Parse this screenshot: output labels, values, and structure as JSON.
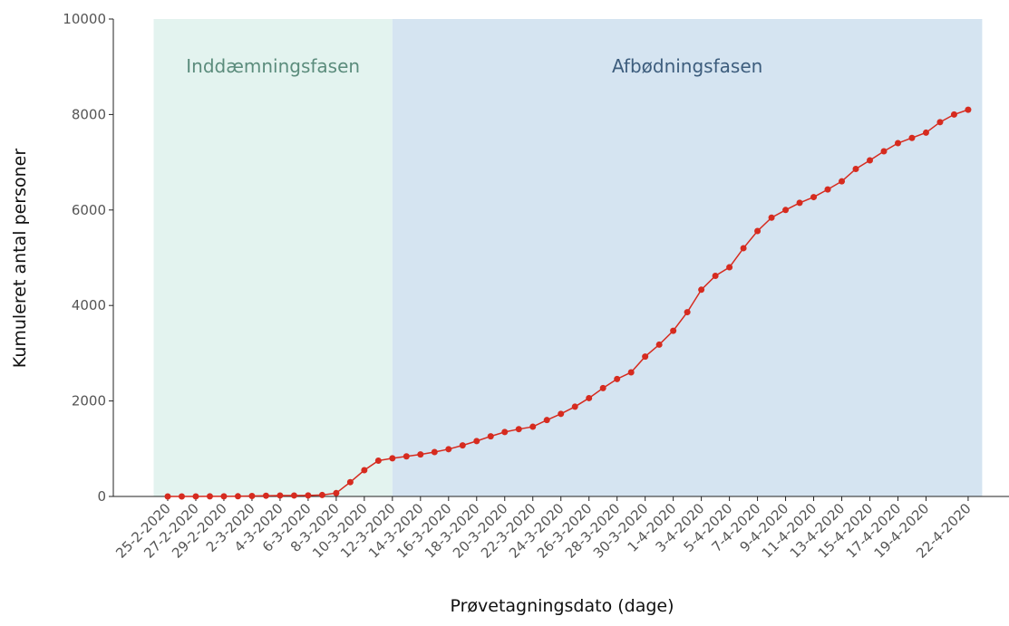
{
  "chart_data": {
    "type": "line",
    "x_label": "Prøvetagningsdato (dage)",
    "y_label": "Kumuleret antal personer",
    "categories": [
      "25-2-2020",
      null,
      "27-2-2020",
      null,
      "29-2-2020",
      null,
      "2-3-2020",
      null,
      "4-3-2020",
      null,
      "6-3-2020",
      null,
      "8-3-2020",
      null,
      "10-3-2020",
      null,
      "12-3-2020",
      null,
      "14-3-2020",
      null,
      "16-3-2020",
      null,
      "18-3-2020",
      null,
      "20-3-2020",
      null,
      "22-3-2020",
      null,
      "24-3-2020",
      null,
      "26-3-2020",
      null,
      "28-3-2020",
      null,
      "30-3-2020",
      null,
      "1-4-2020",
      null,
      "3-4-2020",
      null,
      "5-4-2020",
      null,
      "7-4-2020",
      null,
      "9-4-2020",
      null,
      "11-4-2020",
      null,
      "13-4-2020",
      null,
      "15-4-2020",
      null,
      "17-4-2020",
      null,
      "19-4-2020",
      null,
      null,
      "22-4-2020"
    ],
    "series": [
      {
        "name": "Kumuleret antal personer",
        "color": "#d62b1f",
        "values": [
          0,
          0,
          1,
          2,
          3,
          4,
          10,
          15,
          20,
          20,
          22,
          30,
          70,
          300,
          550,
          750,
          800,
          840,
          880,
          930,
          990,
          1070,
          1160,
          1260,
          1350,
          1410,
          1460,
          1600,
          1730,
          1880,
          2060,
          2270,
          2460,
          2600,
          2930,
          3180,
          3470,
          3860,
          4330,
          4620,
          4800,
          5200,
          5560,
          5840,
          6000,
          6150,
          6270,
          6430,
          6600,
          6860,
          7040,
          7230,
          7400,
          7510,
          7620,
          7840,
          8000,
          8100
        ]
      }
    ],
    "ylim": [
      0,
      10000
    ],
    "yticks": [
      0,
      2000,
      4000,
      6000,
      8000,
      10000
    ],
    "phases": [
      {
        "label": "Inddæmningsfasen",
        "color": "#e3f3ef",
        "text_color": "#5b8c7c"
      },
      {
        "label": "Afbødningsfasen",
        "color": "#d5e4f1",
        "text_color": "#3d5d7d"
      }
    ],
    "phase_boundary": "12-3-2020"
  }
}
